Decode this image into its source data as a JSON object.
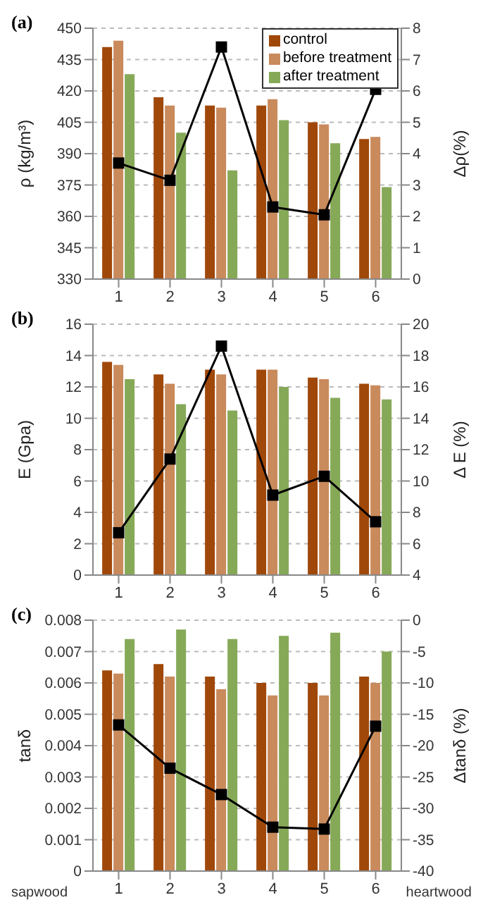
{
  "chart_data": [
    {
      "type": "bar",
      "title": "(a)",
      "ylabel": "ρ (kg/m³)",
      "y2label": "Δρ(%)",
      "categories": [
        "1",
        "2",
        "3",
        "4",
        "5",
        "6"
      ],
      "ylim": [
        330,
        450
      ],
      "yticks": [
        330,
        345,
        360,
        375,
        390,
        405,
        420,
        435,
        450
      ],
      "y2lim": [
        0,
        8
      ],
      "y2ticks": [
        0,
        1,
        2,
        3,
        4,
        5,
        6,
        7,
        8
      ],
      "grid": "y",
      "legend": "top right",
      "marker": "square",
      "series": [
        {
          "name": "control",
          "color": "#a0480a",
          "values": [
            441,
            417,
            413,
            413,
            405,
            397
          ]
        },
        {
          "name": "before treatment",
          "color": "#c98a5c",
          "values": [
            444,
            413,
            412,
            416,
            404,
            398
          ]
        },
        {
          "name": "after treatment",
          "color": "#86a957",
          "values": [
            428,
            400,
            382,
            406,
            395,
            374
          ]
        },
        {
          "type": "line",
          "axis": "y2",
          "color": "#000000",
          "values": [
            3.7,
            3.15,
            7.4,
            2.3,
            2.05,
            6.05
          ]
        }
      ]
    },
    {
      "type": "bar",
      "title": "(b)",
      "ylabel": "E (Gpa)",
      "y2label": "Δ E (%)",
      "categories": [
        "1",
        "2",
        "3",
        "4",
        "5",
        "6"
      ],
      "ylim": [
        0,
        16
      ],
      "yticks": [
        0,
        2,
        4,
        6,
        8,
        10,
        12,
        14,
        16
      ],
      "y2lim": [
        4,
        20
      ],
      "y2ticks": [
        4,
        6,
        8,
        10,
        12,
        14,
        16,
        18,
        20
      ],
      "grid": "y",
      "marker": "square",
      "series": [
        {
          "color": "#a0480a",
          "values": [
            13.6,
            12.8,
            13.1,
            13.1,
            12.6,
            12.2
          ]
        },
        {
          "color": "#c98a5c",
          "values": [
            13.4,
            12.2,
            12.8,
            13.1,
            12.5,
            12.1
          ]
        },
        {
          "color": "#86a957",
          "values": [
            12.5,
            10.9,
            10.5,
            12.0,
            11.3,
            11.2
          ]
        },
        {
          "type": "line",
          "axis": "y2",
          "color": "#000000",
          "values": [
            6.7,
            11.4,
            18.6,
            9.1,
            10.3,
            7.4
          ]
        }
      ]
    },
    {
      "type": "bar",
      "title": "(c)",
      "ylabel": "tanδ",
      "y2label": "Δtanδ (%)",
      "categories": [
        "1",
        "2",
        "3",
        "4",
        "5",
        "6"
      ],
      "ylim": [
        0,
        0.008
      ],
      "yticks": [
        0,
        0.001,
        0.002,
        0.003,
        0.004,
        0.005,
        0.006,
        0.007,
        0.008
      ],
      "y2lim": [
        -40,
        0
      ],
      "y2ticks": [
        -40,
        -35,
        -30,
        -25,
        -20,
        -15,
        -10,
        -5,
        0
      ],
      "grid": "y",
      "marker": "square",
      "annotations": [
        "sapwood",
        "heartwood"
      ],
      "series": [
        {
          "color": "#a0480a",
          "values": [
            0.0064,
            0.0066,
            0.0062,
            0.006,
            0.006,
            0.0062
          ]
        },
        {
          "color": "#c98a5c",
          "values": [
            0.0063,
            0.0062,
            0.0058,
            0.0056,
            0.0056,
            0.006
          ]
        },
        {
          "color": "#86a957",
          "values": [
            0.0074,
            0.0077,
            0.0074,
            0.0075,
            0.0076,
            0.007
          ]
        },
        {
          "type": "line",
          "axis": "y2",
          "color": "#000000",
          "values": [
            -16.7,
            -23.6,
            -27.8,
            -33,
            -33.3,
            -16.9
          ]
        }
      ]
    }
  ]
}
